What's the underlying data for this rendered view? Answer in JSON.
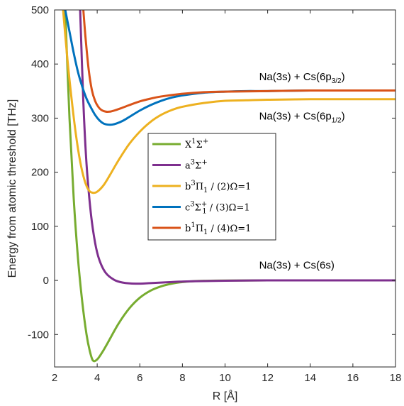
{
  "chart_data": {
    "type": "line",
    "title": "",
    "xlabel": "R [Å]",
    "ylabel": "Energy from atomic threshold [THz]",
    "xlim": [
      2,
      18
    ],
    "ylim": [
      -160,
      500
    ],
    "x_ticks": [
      "2",
      "4",
      "6",
      "8",
      "10",
      "12",
      "14",
      "16",
      "18"
    ],
    "y_ticks": [
      "-100",
      "0",
      "100",
      "200",
      "300",
      "400",
      "500"
    ],
    "grid": false,
    "legend_position": "center",
    "series": [
      {
        "name": "X1Σ+",
        "legend_main": "X",
        "legend_sup": "1",
        "legend_tail": "Σ",
        "legend_tail_sup": "+",
        "legend_tail_sub": "",
        "legend_suffix": "",
        "color": "#77ac30",
        "x": [
          2.5,
          2.7,
          2.9,
          3.1,
          3.3,
          3.5,
          3.65,
          3.8,
          4.0,
          4.25,
          4.5,
          5.0,
          5.5,
          6.0,
          6.5,
          7.0,
          7.5,
          8.0,
          8.5,
          9.0,
          10.0,
          12.0,
          14.0,
          16.0,
          18.0
        ],
        "values": [
          500,
          300,
          150,
          40,
          -40,
          -100,
          -130,
          -148,
          -146,
          -132,
          -115,
          -80,
          -52,
          -32,
          -19,
          -11,
          -6,
          -3,
          -1.5,
          -0.8,
          -0.2,
          0,
          0,
          0,
          0
        ]
      },
      {
        "name": "a3Σ+",
        "legend_main": "a",
        "legend_sup": "3",
        "legend_tail": "Σ",
        "legend_tail_sup": "+",
        "legend_tail_sub": "",
        "legend_suffix": "",
        "color": "#7e2f8e",
        "x": [
          3.2,
          3.35,
          3.5,
          3.7,
          3.9,
          4.1,
          4.4,
          4.8,
          5.2,
          5.8,
          6.5,
          7.5,
          8.5,
          10.0,
          12.0,
          14.0,
          16.0,
          18.0
        ],
        "values": [
          500,
          330,
          215,
          125,
          70,
          38,
          14,
          1,
          -4,
          -6,
          -5,
          -3,
          -1.5,
          -0.5,
          0,
          0,
          0,
          0
        ]
      },
      {
        "name": "b3Π1 / (2)Ω=1",
        "legend_main": "b",
        "legend_sup": "3",
        "legend_tail": "Π",
        "legend_tail_sup": "",
        "legend_tail_sub": "1",
        "legend_suffix": " / (2)Ω=1",
        "color": "#edb120",
        "x": [
          2.4,
          2.6,
          2.8,
          3.0,
          3.2,
          3.4,
          3.6,
          3.8,
          4.0,
          4.3,
          4.6,
          5.0,
          5.5,
          6.0,
          6.5,
          7.0,
          7.5,
          8.0,
          9.0,
          10.0,
          11.0,
          12.0,
          14.0,
          16.0,
          18.0
        ],
        "values": [
          500,
          410,
          335,
          270,
          220,
          186,
          167,
          162,
          164,
          176,
          195,
          222,
          252,
          275,
          293,
          306,
          315,
          321,
          328,
          332,
          333,
          334,
          335,
          335,
          335
        ]
      },
      {
        "name": "c3Σ1+ / (3)Ω=1",
        "legend_main": "c",
        "legend_sup": "3",
        "legend_tail": "Σ",
        "legend_tail_sup": "+",
        "legend_tail_sub": "1",
        "legend_suffix": " / (3)Ω=1",
        "color": "#0072bd",
        "x": [
          2.5,
          2.7,
          2.9,
          3.1,
          3.3,
          3.5,
          3.7,
          3.9,
          4.1,
          4.3,
          4.5,
          4.7,
          4.9,
          5.2,
          5.5,
          6.0,
          6.5,
          7.0,
          7.5,
          8.0,
          9.0,
          10.0,
          11.0,
          12.0,
          14.0,
          16.0,
          18.0
        ],
        "values": [
          500,
          460,
          420,
          385,
          358,
          336,
          320,
          306,
          296,
          290,
          288,
          288,
          290,
          295,
          302,
          314,
          324,
          332,
          338,
          342,
          347,
          349,
          350,
          350,
          351,
          351,
          351
        ]
      },
      {
        "name": "b1Π1 / (4)Ω=1",
        "legend_main": "b",
        "legend_sup": "1",
        "legend_tail": "Π",
        "legend_tail_sup": "",
        "legend_tail_sub": "1",
        "legend_suffix": " / (4)Ω=1",
        "color": "#d95319",
        "x": [
          3.35,
          3.45,
          3.6,
          3.75,
          3.9,
          4.05,
          4.2,
          4.4,
          4.6,
          4.8,
          5.1,
          5.5,
          6.0,
          6.5,
          7.0,
          8.0,
          9.0,
          10.0,
          12.0,
          14.0,
          16.0,
          18.0
        ],
        "values": [
          500,
          450,
          390,
          352,
          332,
          321,
          315,
          312,
          312,
          314,
          318,
          324,
          331,
          336,
          340,
          345,
          348,
          349,
          350,
          351,
          351,
          351
        ]
      }
    ],
    "annotations": [
      {
        "text": "Na(3s) + Cs(6p",
        "sub": "3/2",
        "close": ")",
        "x": 11.6,
        "y": 370
      },
      {
        "text": "Na(3s) + Cs(6p",
        "sub": "1/2",
        "close": ")",
        "x": 11.6,
        "y": 297
      },
      {
        "text": "Na(3s) + Cs(6s)",
        "x": 11.6,
        "y": 22
      }
    ]
  }
}
